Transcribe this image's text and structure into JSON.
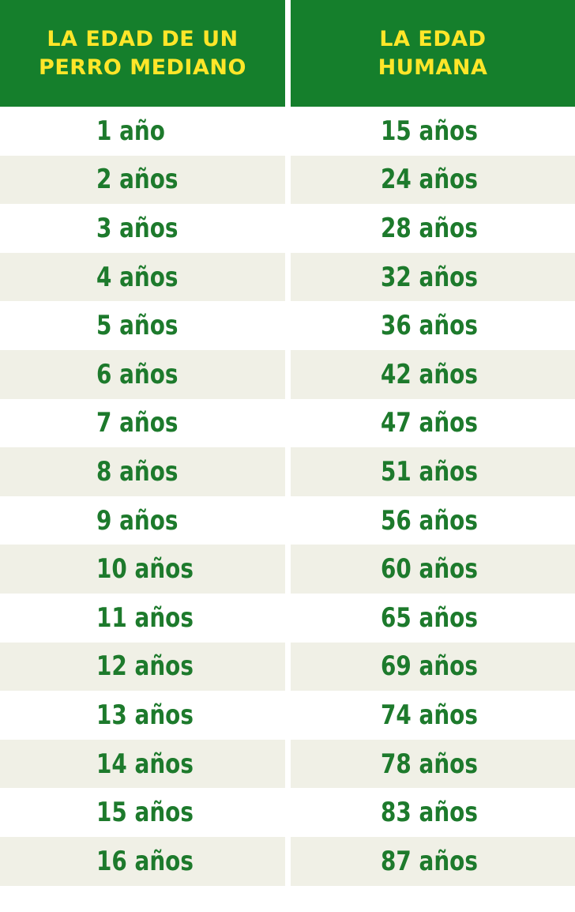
{
  "table": {
    "headers": {
      "dog": "LA EDAD DE UN\nPERRO MEDIANO",
      "human": "LA EDAD\nHUMANA"
    },
    "rows": [
      {
        "dog": "1 año",
        "human": "15 años"
      },
      {
        "dog": "2 años",
        "human": "24 años"
      },
      {
        "dog": "3 años",
        "human": "28 años"
      },
      {
        "dog": "4 años",
        "human": "32 años"
      },
      {
        "dog": "5 años",
        "human": "36 años"
      },
      {
        "dog": "6 años",
        "human": "42 años"
      },
      {
        "dog": "7 años",
        "human": "47 años"
      },
      {
        "dog": "8 años",
        "human": "51 años"
      },
      {
        "dog": "9 años",
        "human": "56 años"
      },
      {
        "dog": "10 años",
        "human": "60 años"
      },
      {
        "dog": "11 años",
        "human": "65 años"
      },
      {
        "dog": "12 años",
        "human": "69 años"
      },
      {
        "dog": "13 años",
        "human": "74 años"
      },
      {
        "dog": "14 años",
        "human": "78 años"
      },
      {
        "dog": "15 años",
        "human": "83 años"
      },
      {
        "dog": "16 años",
        "human": "87 años"
      }
    ]
  },
  "colors": {
    "header_bg": "#157f2c",
    "header_text": "#ffe629",
    "body_text": "#1d7a2c",
    "row_shade": "#f0f0e6"
  }
}
